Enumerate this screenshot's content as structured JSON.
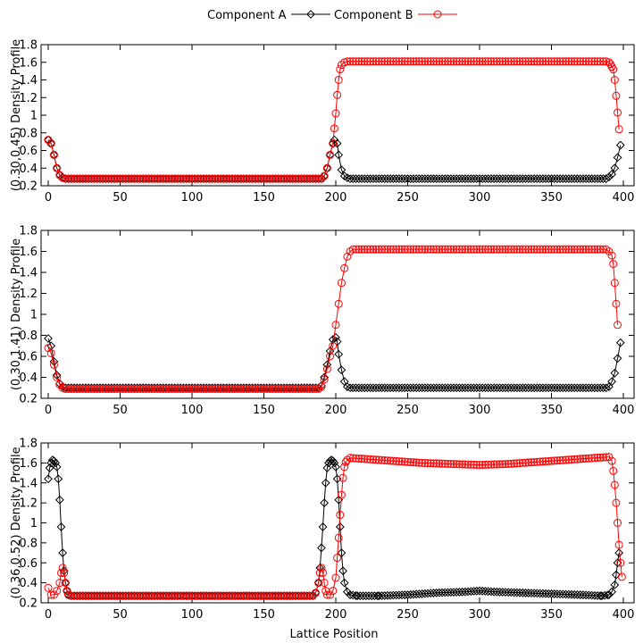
{
  "chart_data": {
    "type": "line",
    "xlabel": "Lattice Position",
    "legend": {
      "placement": "top-center",
      "entries": [
        {
          "name": "Component A",
          "color": "#000000",
          "marker": "diamond"
        },
        {
          "name": "Component B",
          "color": "#ff0000",
          "marker": "circle"
        }
      ]
    },
    "colors": {
      "A": "#000000",
      "B": "#ff0000"
    },
    "grid": false,
    "panels": [
      {
        "ylabel": "(0.30,0.45) Density Profile",
        "xlim": [
          0,
          400
        ],
        "ylim": [
          0.2,
          1.8
        ],
        "xticks": [
          0,
          50,
          100,
          150,
          200,
          250,
          300,
          350,
          400
        ],
        "yticks": [
          0.2,
          0.4,
          0.6,
          0.8,
          1,
          1.2,
          1.4,
          1.6,
          1.8
        ],
        "series": [
          {
            "name": "Component A",
            "key": "A",
            "points": [
              [
                0,
                0.72
              ],
              [
                2,
                0.68
              ],
              [
                4,
                0.55
              ],
              [
                6,
                0.4
              ],
              [
                8,
                0.32
              ],
              [
                10,
                0.29
              ],
              [
                12,
                0.28
              ],
              [
                190,
                0.28
              ],
              [
                192,
                0.31
              ],
              [
                194,
                0.4
              ],
              [
                196,
                0.55
              ],
              [
                198,
                0.68
              ],
              [
                199,
                0.72
              ],
              [
                201,
                0.68
              ],
              [
                202,
                0.55
              ],
              [
                204,
                0.38
              ],
              [
                206,
                0.31
              ],
              [
                208,
                0.29
              ],
              [
                210,
                0.28
              ],
              [
                388,
                0.28
              ],
              [
                390,
                0.3
              ],
              [
                392,
                0.33
              ],
              [
                394,
                0.4
              ],
              [
                396,
                0.52
              ],
              [
                398,
                0.66
              ]
            ]
          },
          {
            "name": "Component B",
            "key": "B",
            "points": [
              [
                0,
                0.72
              ],
              [
                2,
                0.68
              ],
              [
                4,
                0.55
              ],
              [
                6,
                0.4
              ],
              [
                8,
                0.32
              ],
              [
                10,
                0.29
              ],
              [
                12,
                0.28
              ],
              [
                190,
                0.28
              ],
              [
                192,
                0.31
              ],
              [
                194,
                0.4
              ],
              [
                196,
                0.55
              ],
              [
                198,
                0.68
              ],
              [
                199,
                0.85
              ],
              [
                200,
                1.02
              ],
              [
                201,
                1.23
              ],
              [
                202,
                1.4
              ],
              [
                203,
                1.52
              ],
              [
                204,
                1.57
              ],
              [
                206,
                1.6
              ],
              [
                208,
                1.61
              ],
              [
                210,
                1.61
              ],
              [
                388,
                1.61
              ],
              [
                390,
                1.6
              ],
              [
                391,
                1.58
              ],
              [
                392,
                1.55
              ],
              [
                393,
                1.52
              ],
              [
                394,
                1.4
              ],
              [
                395,
                1.22
              ],
              [
                396,
                1.03
              ],
              [
                397,
                0.84
              ]
            ]
          }
        ]
      },
      {
        "ylabel": "(0.30,1.41) Density Profile",
        "xlim": [
          0,
          400
        ],
        "ylim": [
          0.2,
          1.8
        ],
        "xticks": [
          0,
          50,
          100,
          150,
          200,
          250,
          300,
          350,
          400
        ],
        "yticks": [
          0.2,
          0.4,
          0.6,
          0.8,
          1,
          1.2,
          1.4,
          1.6,
          1.8
        ],
        "series": [
          {
            "name": "Component A",
            "key": "A",
            "points": [
              [
                0,
                0.77
              ],
              [
                2,
                0.7
              ],
              [
                4,
                0.55
              ],
              [
                6,
                0.42
              ],
              [
                8,
                0.34
              ],
              [
                10,
                0.31
              ],
              [
                12,
                0.3
              ],
              [
                188,
                0.3
              ],
              [
                190,
                0.32
              ],
              [
                192,
                0.4
              ],
              [
                194,
                0.52
              ],
              [
                196,
                0.65
              ],
              [
                198,
                0.76
              ],
              [
                200,
                0.78
              ],
              [
                201,
                0.74
              ],
              [
                202,
                0.62
              ],
              [
                204,
                0.47
              ],
              [
                206,
                0.36
              ],
              [
                208,
                0.31
              ],
              [
                210,
                0.3
              ],
              [
                388,
                0.3
              ],
              [
                390,
                0.31
              ],
              [
                392,
                0.36
              ],
              [
                394,
                0.44
              ],
              [
                396,
                0.58
              ],
              [
                398,
                0.73
              ]
            ]
          },
          {
            "name": "Component B",
            "key": "B",
            "points": [
              [
                0,
                0.68
              ],
              [
                2,
                0.63
              ],
              [
                4,
                0.52
              ],
              [
                6,
                0.4
              ],
              [
                8,
                0.33
              ],
              [
                10,
                0.3
              ],
              [
                12,
                0.29
              ],
              [
                188,
                0.29
              ],
              [
                190,
                0.31
              ],
              [
                192,
                0.38
              ],
              [
                194,
                0.48
              ],
              [
                196,
                0.6
              ],
              [
                198,
                0.7
              ],
              [
                200,
                0.9
              ],
              [
                202,
                1.1
              ],
              [
                204,
                1.3
              ],
              [
                206,
                1.44
              ],
              [
                208,
                1.55
              ],
              [
                210,
                1.6
              ],
              [
                212,
                1.62
              ],
              [
                388,
                1.62
              ],
              [
                390,
                1.6
              ],
              [
                392,
                1.56
              ],
              [
                393,
                1.48
              ],
              [
                394,
                1.3
              ],
              [
                395,
                1.1
              ],
              [
                396,
                0.9
              ]
            ]
          }
        ]
      },
      {
        "ylabel": "(0.36,0.52) Density Profile",
        "xlim": [
          0,
          400
        ],
        "ylim": [
          0.2,
          1.8
        ],
        "xticks": [
          0,
          50,
          100,
          150,
          200,
          250,
          300,
          350,
          400
        ],
        "yticks": [
          0.2,
          0.4,
          0.6,
          0.8,
          1,
          1.2,
          1.4,
          1.6,
          1.8
        ],
        "series": [
          {
            "name": "Component A",
            "key": "A",
            "points": [
              [
                0,
                1.44
              ],
              [
                1,
                1.55
              ],
              [
                2,
                1.6
              ],
              [
                3,
                1.63
              ],
              [
                4,
                1.62
              ],
              [
                5,
                1.6
              ],
              [
                6,
                1.56
              ],
              [
                7,
                1.44
              ],
              [
                8,
                1.23
              ],
              [
                9,
                0.96
              ],
              [
                10,
                0.7
              ],
              [
                11,
                0.52
              ],
              [
                12,
                0.4
              ],
              [
                13,
                0.32
              ],
              [
                14,
                0.28
              ],
              [
                16,
                0.27
              ],
              [
                184,
                0.27
              ],
              [
                186,
                0.3
              ],
              [
                188,
                0.4
              ],
              [
                189,
                0.55
              ],
              [
                190,
                0.75
              ],
              [
                191,
                0.96
              ],
              [
                192,
                1.2
              ],
              [
                193,
                1.4
              ],
              [
                194,
                1.55
              ],
              [
                195,
                1.6
              ],
              [
                196,
                1.62
              ],
              [
                197,
                1.63
              ],
              [
                198,
                1.62
              ],
              [
                199,
                1.6
              ],
              [
                200,
                1.56
              ],
              [
                201,
                1.44
              ],
              [
                202,
                1.23
              ],
              [
                203,
                0.96
              ],
              [
                204,
                0.7
              ],
              [
                205,
                0.52
              ],
              [
                206,
                0.4
              ],
              [
                208,
                0.31
              ],
              [
                210,
                0.28
              ],
              [
                215,
                0.27
              ],
              [
                230,
                0.27
              ],
              [
                250,
                0.28
              ],
              [
                270,
                0.3
              ],
              [
                290,
                0.31
              ],
              [
                300,
                0.32
              ],
              [
                310,
                0.31
              ],
              [
                330,
                0.3
              ],
              [
                350,
                0.29
              ],
              [
                370,
                0.28
              ],
              [
                385,
                0.27
              ],
              [
                390,
                0.28
              ],
              [
                392,
                0.31
              ],
              [
                394,
                0.38
              ],
              [
                395,
                0.48
              ],
              [
                396,
                0.6
              ],
              [
                397,
                0.7
              ]
            ]
          },
          {
            "name": "Component B",
            "key": "B",
            "points": [
              [
                0,
                0.35
              ],
              [
                2,
                0.28
              ],
              [
                4,
                0.28
              ],
              [
                6,
                0.32
              ],
              [
                8,
                0.4
              ],
              [
                9,
                0.5
              ],
              [
                10,
                0.55
              ],
              [
                11,
                0.5
              ],
              [
                12,
                0.4
              ],
              [
                13,
                0.32
              ],
              [
                14,
                0.28
              ],
              [
                16,
                0.27
              ],
              [
                184,
                0.27
              ],
              [
                186,
                0.3
              ],
              [
                188,
                0.4
              ],
              [
                189,
                0.5
              ],
              [
                190,
                0.55
              ],
              [
                191,
                0.5
              ],
              [
                192,
                0.4
              ],
              [
                193,
                0.32
              ],
              [
                194,
                0.28
              ],
              [
                196,
                0.28
              ],
              [
                198,
                0.32
              ],
              [
                200,
                0.45
              ],
              [
                201,
                0.65
              ],
              [
                202,
                0.85
              ],
              [
                203,
                1.08
              ],
              [
                204,
                1.28
              ],
              [
                205,
                1.45
              ],
              [
                206,
                1.56
              ],
              [
                207,
                1.61
              ],
              [
                208,
                1.63
              ],
              [
                210,
                1.65
              ],
              [
                220,
                1.64
              ],
              [
                240,
                1.62
              ],
              [
                260,
                1.6
              ],
              [
                280,
                1.59
              ],
              [
                300,
                1.58
              ],
              [
                320,
                1.59
              ],
              [
                340,
                1.61
              ],
              [
                360,
                1.63
              ],
              [
                380,
                1.65
              ],
              [
                390,
                1.66
              ],
              [
                392,
                1.62
              ],
              [
                393,
                1.52
              ],
              [
                394,
                1.38
              ],
              [
                395,
                1.2
              ],
              [
                396,
                1.0
              ],
              [
                397,
                0.78
              ],
              [
                398,
                0.6
              ],
              [
                399,
                0.46
              ]
            ]
          }
        ]
      }
    ]
  }
}
